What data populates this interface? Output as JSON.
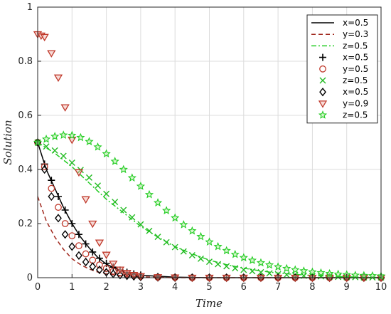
{
  "chart_data": {
    "type": "line",
    "title": "",
    "xlabel": "Time",
    "ylabel": "Solution",
    "xlim": [
      0,
      10
    ],
    "ylim": [
      0,
      1
    ],
    "xticks": [
      "0",
      "1",
      "2",
      "3",
      "4",
      "5",
      "6",
      "7",
      "8",
      "9",
      "10"
    ],
    "yticks": [
      "0",
      "0.2",
      "0.4",
      "0.6",
      "0.8",
      "1"
    ],
    "grid": true,
    "legend_position": "top-right",
    "series": [
      {
        "name": "x=0.5",
        "kind": "line",
        "style": "solid",
        "color": "#000000",
        "x": [
          0,
          0.25,
          0.5,
          0.75,
          1,
          1.25,
          1.5,
          1.75,
          2,
          2.5,
          3,
          4,
          5,
          6,
          7,
          8,
          9,
          10
        ],
        "y": [
          0.5,
          0.4,
          0.33,
          0.26,
          0.2,
          0.15,
          0.11,
          0.075,
          0.05,
          0.022,
          0.009,
          0.002,
          0,
          0,
          0,
          0,
          0,
          0
        ]
      },
      {
        "name": "y=0.3",
        "kind": "line",
        "style": "dashed",
        "color": "#a0281e",
        "x": [
          0,
          0.25,
          0.5,
          0.75,
          1,
          1.25,
          1.5,
          1.75,
          2,
          2.5,
          3,
          4,
          5,
          6,
          7,
          8,
          9,
          10
        ],
        "y": [
          0.3,
          0.21,
          0.15,
          0.105,
          0.07,
          0.048,
          0.032,
          0.021,
          0.014,
          0.006,
          0.003,
          0,
          0,
          0,
          0,
          0,
          0,
          0
        ]
      },
      {
        "name": "z=0.5",
        "kind": "line",
        "style": "dashdot",
        "color": "#22cc22",
        "x": [
          0,
          0.5,
          1,
          1.5,
          2,
          2.5,
          3,
          3.5,
          4,
          4.5,
          5,
          5.5,
          6,
          6.5,
          7,
          7.5,
          8,
          8.5,
          9,
          9.5,
          10
        ],
        "y": [
          0.5,
          0.46,
          0.41,
          0.35,
          0.29,
          0.24,
          0.19,
          0.15,
          0.115,
          0.088,
          0.065,
          0.048,
          0.035,
          0.025,
          0.017,
          0.012,
          0.008,
          0.005,
          0.003,
          0.002,
          0.001
        ]
      },
      {
        "name": "x=0.5",
        "kind": "marker",
        "marker": "plus",
        "color": "#000000",
        "x": [
          0,
          0.2,
          0.4,
          0.6,
          0.8,
          1,
          1.2,
          1.4,
          1.6,
          1.8,
          2,
          2.2,
          2.4,
          2.6,
          2.8,
          3,
          3.5,
          4,
          4.5,
          5,
          5.5,
          6,
          6.5,
          7,
          7.5,
          8,
          8.5,
          9,
          9.5,
          10
        ],
        "y": [
          0.5,
          0.42,
          0.36,
          0.3,
          0.25,
          0.2,
          0.16,
          0.125,
          0.095,
          0.072,
          0.053,
          0.039,
          0.028,
          0.02,
          0.014,
          0.01,
          0.004,
          0.002,
          0.001,
          0,
          0,
          0,
          0,
          0,
          0,
          0,
          0,
          0,
          0,
          0
        ]
      },
      {
        "name": "y=0.5",
        "kind": "marker",
        "marker": "circle",
        "color": "#c0392b",
        "x": [
          0,
          0.2,
          0.4,
          0.6,
          0.8,
          1,
          1.2,
          1.4,
          1.6,
          1.8,
          2,
          2.2,
          2.4,
          2.6,
          2.8,
          3,
          3.5,
          4,
          4.5,
          5,
          5.5,
          6,
          6.5,
          7,
          7.5,
          8,
          8.5,
          9,
          9.5,
          10
        ],
        "y": [
          0.5,
          0.41,
          0.33,
          0.26,
          0.2,
          0.155,
          0.118,
          0.088,
          0.065,
          0.047,
          0.034,
          0.024,
          0.017,
          0.012,
          0.008,
          0.005,
          0.002,
          0.001,
          0,
          0,
          0,
          0,
          0,
          0,
          0,
          0,
          0,
          0,
          0,
          0
        ]
      },
      {
        "name": "z=0.5",
        "kind": "marker",
        "marker": "x",
        "color": "#22bb22",
        "x": [
          0,
          0.25,
          0.5,
          0.75,
          1,
          1.25,
          1.5,
          1.75,
          2,
          2.25,
          2.5,
          2.75,
          3,
          3.25,
          3.5,
          3.75,
          4,
          4.25,
          4.5,
          4.75,
          5,
          5.25,
          5.5,
          5.75,
          6,
          6.25,
          6.5,
          6.75,
          7,
          7.25,
          7.5,
          7.75,
          8,
          8.25,
          8.5,
          8.75,
          9,
          9.25,
          9.5,
          9.75,
          10
        ],
        "y": [
          0.5,
          0.485,
          0.47,
          0.45,
          0.425,
          0.398,
          0.37,
          0.34,
          0.31,
          0.28,
          0.25,
          0.223,
          0.197,
          0.173,
          0.151,
          0.131,
          0.113,
          0.097,
          0.083,
          0.07,
          0.059,
          0.05,
          0.042,
          0.035,
          0.029,
          0.024,
          0.02,
          0.016,
          0.013,
          0.011,
          0.009,
          0.007,
          0.006,
          0.005,
          0.004,
          0.003,
          0.002,
          0.002,
          0.001,
          0.001,
          0.001
        ]
      },
      {
        "name": "x=0.5",
        "kind": "marker",
        "marker": "diamond",
        "color": "#000000",
        "x": [
          0,
          0.2,
          0.4,
          0.6,
          0.8,
          1,
          1.2,
          1.4,
          1.6,
          1.8,
          2,
          2.2,
          2.4,
          2.6,
          2.8,
          3,
          3.5,
          4,
          4.5,
          5,
          5.5,
          6,
          6.5,
          7,
          7.5,
          8,
          8.5,
          9,
          9.5,
          10
        ],
        "y": [
          0.5,
          0.4,
          0.3,
          0.22,
          0.16,
          0.115,
          0.082,
          0.058,
          0.041,
          0.029,
          0.02,
          0.014,
          0.01,
          0.007,
          0.005,
          0.003,
          0.001,
          0,
          0,
          0,
          0,
          0,
          0,
          0,
          0,
          0,
          0,
          0,
          0,
          0
        ]
      },
      {
        "name": "y=0.9",
        "kind": "marker",
        "marker": "triangle-down",
        "color": "#c0392b",
        "x": [
          0,
          0.1,
          0.2,
          0.4,
          0.6,
          0.8,
          1,
          1.2,
          1.4,
          1.6,
          1.8,
          2,
          2.2,
          2.4,
          2.6,
          2.8,
          3,
          3.5,
          4,
          4.5,
          5,
          5.5,
          6,
          6.5,
          7,
          7.5,
          8,
          8.5,
          9,
          9.5,
          10
        ],
        "y": [
          0.9,
          0.895,
          0.89,
          0.83,
          0.74,
          0.63,
          0.51,
          0.39,
          0.29,
          0.2,
          0.13,
          0.085,
          0.052,
          0.03,
          0.018,
          0.01,
          0.006,
          0.002,
          0.001,
          0,
          0,
          0,
          0,
          0,
          0,
          0,
          0,
          0,
          0,
          0,
          0
        ]
      },
      {
        "name": "z=0.5",
        "kind": "marker",
        "marker": "star",
        "color": "#22cc22",
        "x": [
          0,
          0.25,
          0.5,
          0.75,
          1,
          1.25,
          1.5,
          1.75,
          2,
          2.25,
          2.5,
          2.75,
          3,
          3.25,
          3.5,
          3.75,
          4,
          4.25,
          4.5,
          4.75,
          5,
          5.25,
          5.5,
          5.75,
          6,
          6.25,
          6.5,
          6.75,
          7,
          7.25,
          7.5,
          7.75,
          8,
          8.25,
          8.5,
          8.75,
          9,
          9.25,
          9.5,
          9.75,
          10
        ],
        "y": [
          0.5,
          0.512,
          0.522,
          0.527,
          0.526,
          0.518,
          0.503,
          0.483,
          0.458,
          0.43,
          0.4,
          0.369,
          0.338,
          0.307,
          0.277,
          0.248,
          0.221,
          0.196,
          0.173,
          0.152,
          0.132,
          0.115,
          0.1,
          0.086,
          0.074,
          0.064,
          0.055,
          0.047,
          0.04,
          0.034,
          0.029,
          0.025,
          0.021,
          0.018,
          0.015,
          0.013,
          0.011,
          0.009,
          0.008,
          0.007,
          0.006
        ]
      }
    ]
  }
}
